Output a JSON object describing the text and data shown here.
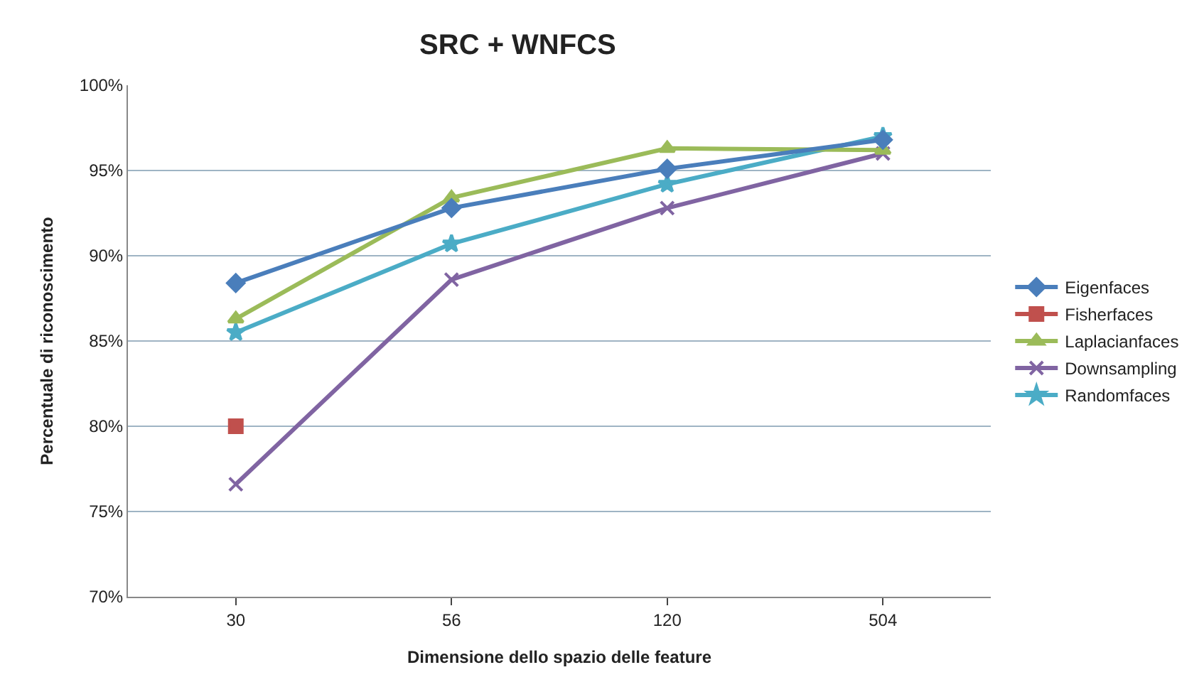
{
  "chart_data": {
    "type": "line",
    "title": "SRC + WNFCS",
    "xlabel": "Dimensione dello spazio delle feature",
    "ylabel": "Percentuale di riconoscimento",
    "categories": [
      "30",
      "56",
      "120",
      "504"
    ],
    "series": [
      {
        "name": "Eigenfaces",
        "color": "#4a7ebb",
        "marker": "diamond",
        "values": [
          88.4,
          92.8,
          95.1,
          96.8
        ]
      },
      {
        "name": "Fisherfaces",
        "color": "#c0504d",
        "marker": "square",
        "values": [
          80.0,
          null,
          null,
          null
        ]
      },
      {
        "name": "Laplacianfaces",
        "color": "#9bbb59",
        "marker": "triangle",
        "values": [
          86.3,
          93.4,
          96.3,
          96.2
        ]
      },
      {
        "name": "Downsampling",
        "color": "#8064a2",
        "marker": "cross",
        "values": [
          76.6,
          88.6,
          92.8,
          96.0
        ]
      },
      {
        "name": "Randomfaces",
        "color": "#4bacc6",
        "marker": "star",
        "values": [
          85.5,
          90.7,
          94.2,
          97.0
        ]
      }
    ],
    "ylim": [
      70,
      100
    ],
    "yticks": [
      {
        "value": 70,
        "label": "70%"
      },
      {
        "value": 75,
        "label": "75%"
      },
      {
        "value": 80,
        "label": "80%"
      },
      {
        "value": 85,
        "label": "85%"
      },
      {
        "value": 90,
        "label": "90%"
      },
      {
        "value": 95,
        "label": "95%"
      },
      {
        "value": 100,
        "label": "100%"
      }
    ],
    "grid": "y",
    "legend": "right",
    "line_style": "solid"
  }
}
